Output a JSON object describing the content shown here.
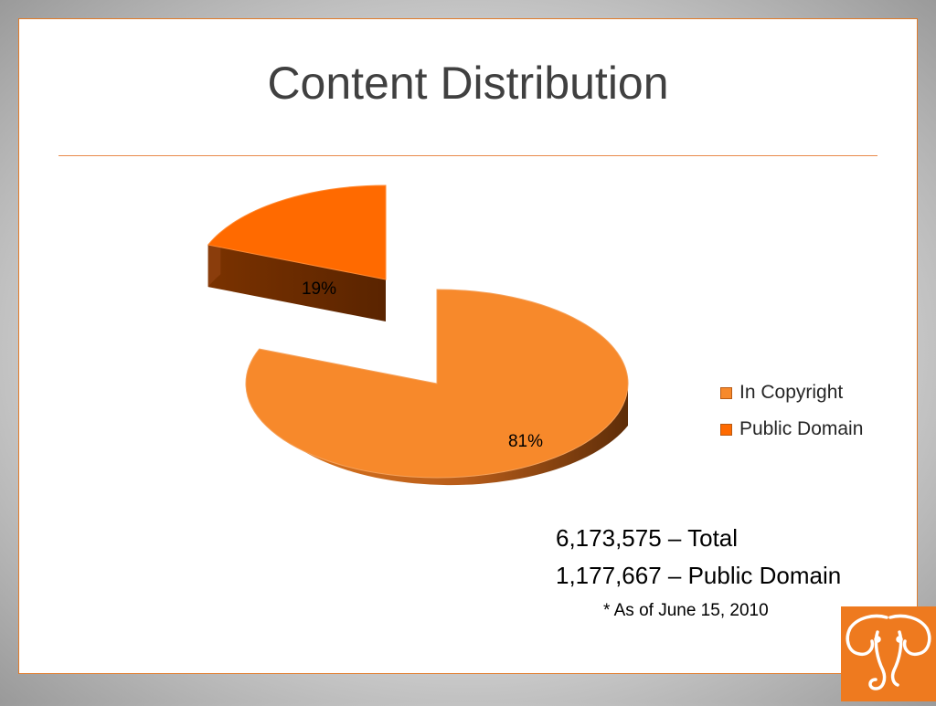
{
  "slide": {
    "title": "Content Distribution"
  },
  "chart_data": {
    "type": "pie",
    "title": "",
    "slices": [
      {
        "name": "In Copyright",
        "value": 81,
        "label": "81%",
        "color": "#f7892b"
      },
      {
        "name": "Public Domain",
        "value": 19,
        "label": "19%",
        "color": "#ff6a00"
      }
    ],
    "exploded": "Public Domain",
    "style": "3d",
    "legend_position": "right"
  },
  "stats": {
    "total": "6,173,575 – Total",
    "public_domain": "1,177,667 – Public Domain",
    "note": "* As of June 15, 2010"
  },
  "logo": {
    "icon": "elephant-logo-icon",
    "color": "#ee7a1f"
  }
}
